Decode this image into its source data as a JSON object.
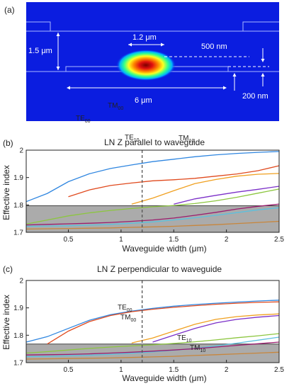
{
  "panel_a": {
    "label": "(a)",
    "annotations": {
      "dim_1_2um": "1.2 μm",
      "dim_1_5um": "1.5 μm",
      "dim_500nm": "500 nm",
      "dim_6um": "6 μm",
      "dim_200nm": "200 nm"
    }
  },
  "panel_b": {
    "label": "(b)"
  },
  "panel_c": {
    "label": "(c)"
  },
  "chart_data": [
    {
      "type": "line",
      "title": "LN Z parallel to waveguide",
      "xlabel": "Waveguide width (μm)",
      "ylabel": "Effective index",
      "xlim": [
        0.1,
        2.5
      ],
      "ylim": [
        1.7,
        2.0
      ],
      "xticks": [
        "0.5",
        "1",
        "1.5",
        "2",
        "2.5"
      ],
      "yticks": [
        "1.7",
        "1.8",
        "1.9",
        "2"
      ],
      "substrate_band": [
        1.7,
        1.797
      ],
      "cutline_x": 1.2,
      "mode_labels": [
        "TE00",
        "TM00",
        "TE10",
        "TM10"
      ],
      "x": [
        0.1,
        0.3,
        0.5,
        0.7,
        0.9,
        1.1,
        1.3,
        1.5,
        1.7,
        1.9,
        2.1,
        2.3,
        2.5
      ],
      "series": [
        {
          "color": "#2f86e0",
          "values": [
            1.812,
            1.842,
            1.885,
            1.914,
            1.933,
            1.946,
            1.958,
            1.967,
            1.976,
            1.983,
            1.988,
            1.992,
            1.995
          ]
        },
        {
          "color": "#e04a1e",
          "values": [
            null,
            null,
            1.83,
            1.855,
            1.871,
            1.88,
            1.888,
            1.892,
            1.897,
            1.905,
            1.913,
            1.925,
            1.943
          ]
        },
        {
          "color": "#f0a020",
          "values": [
            null,
            null,
            null,
            null,
            null,
            1.803,
            1.825,
            1.852,
            1.878,
            1.893,
            1.905,
            1.912,
            1.915
          ]
        },
        {
          "color": "#7b2fc8",
          "values": [
            null,
            null,
            null,
            null,
            null,
            null,
            null,
            1.803,
            1.822,
            1.835,
            1.847,
            1.857,
            1.868
          ]
        },
        {
          "color": "#8cc63f",
          "values": [
            1.73,
            1.745,
            1.76,
            1.771,
            1.78,
            1.787,
            1.793,
            1.798,
            1.805,
            1.815,
            1.828,
            1.843,
            1.858
          ]
        },
        {
          "color": "#9a1d6e",
          "values": [
            1.727,
            1.729,
            1.731,
            1.733,
            1.736,
            1.74,
            1.745,
            1.752,
            1.762,
            1.773,
            1.785,
            1.795,
            1.803
          ]
        },
        {
          "color": "#5bc0de",
          "values": [
            1.722,
            1.723,
            1.724,
            1.726,
            1.729,
            1.733,
            1.738,
            1.745,
            1.753,
            1.762,
            1.772,
            1.782,
            1.79
          ]
        },
        {
          "color": "#c8863c",
          "values": [
            1.712,
            1.713,
            1.714,
            1.715,
            1.716,
            1.718,
            1.72,
            1.722,
            1.725,
            1.728,
            1.732,
            1.736,
            1.74
          ]
        }
      ]
    },
    {
      "type": "line",
      "title": "LN Z perpendicular to waveguide",
      "xlabel": "Waveguide width (μm)",
      "ylabel": "Effective index",
      "xlim": [
        0.1,
        2.5
      ],
      "ylim": [
        1.7,
        2.0
      ],
      "xticks": [
        "0.5",
        "1",
        "1.5",
        "2",
        "2.5"
      ],
      "yticks": [
        "1.7",
        "1.8",
        "1.9",
        "2"
      ],
      "substrate_band": [
        1.7,
        1.768
      ],
      "cutline_x": 1.2,
      "mode_labels": [
        "TE00",
        "TM00",
        "TE10",
        "TM10"
      ],
      "x": [
        0.1,
        0.3,
        0.5,
        0.7,
        0.9,
        1.1,
        1.3,
        1.5,
        1.7,
        1.9,
        2.1,
        2.3,
        2.5
      ],
      "series": [
        {
          "color": "#2f86e0",
          "values": [
            1.775,
            1.795,
            1.825,
            1.855,
            1.875,
            1.888,
            1.898,
            1.906,
            1.912,
            1.917,
            1.921,
            1.925,
            1.928
          ]
        },
        {
          "color": "#e04a1e",
          "values": [
            null,
            1.768,
            1.815,
            1.85,
            1.872,
            1.886,
            1.895,
            1.902,
            1.908,
            1.913,
            1.917,
            1.92,
            1.922
          ]
        },
        {
          "color": "#f0a020",
          "values": [
            null,
            null,
            null,
            null,
            null,
            1.772,
            1.79,
            1.815,
            1.84,
            1.858,
            1.868,
            1.874,
            1.878
          ]
        },
        {
          "color": "#7b2fc8",
          "values": [
            null,
            null,
            null,
            null,
            null,
            null,
            1.775,
            1.8,
            1.825,
            1.845,
            1.858,
            1.866,
            1.872
          ]
        },
        {
          "color": "#8cc63f",
          "values": [
            1.735,
            1.74,
            1.746,
            1.752,
            1.757,
            1.761,
            1.765,
            1.77,
            1.776,
            1.783,
            1.791,
            1.798,
            1.806
          ]
        },
        {
          "color": "#5bc0de",
          "values": [
            1.722,
            1.723,
            1.725,
            1.727,
            1.73,
            1.734,
            1.739,
            1.745,
            1.752,
            1.761,
            1.771,
            1.782,
            1.793
          ]
        },
        {
          "color": "#9a1d6e",
          "values": [
            1.728,
            1.729,
            1.73,
            1.732,
            1.735,
            1.738,
            1.742,
            1.746,
            1.751,
            1.757,
            1.763,
            1.769,
            1.775
          ]
        },
        {
          "color": "#c8863c",
          "values": [
            1.713,
            1.714,
            1.715,
            1.716,
            1.717,
            1.719,
            1.721,
            1.723,
            1.726,
            1.729,
            1.732,
            1.735,
            1.738
          ]
        }
      ]
    }
  ]
}
